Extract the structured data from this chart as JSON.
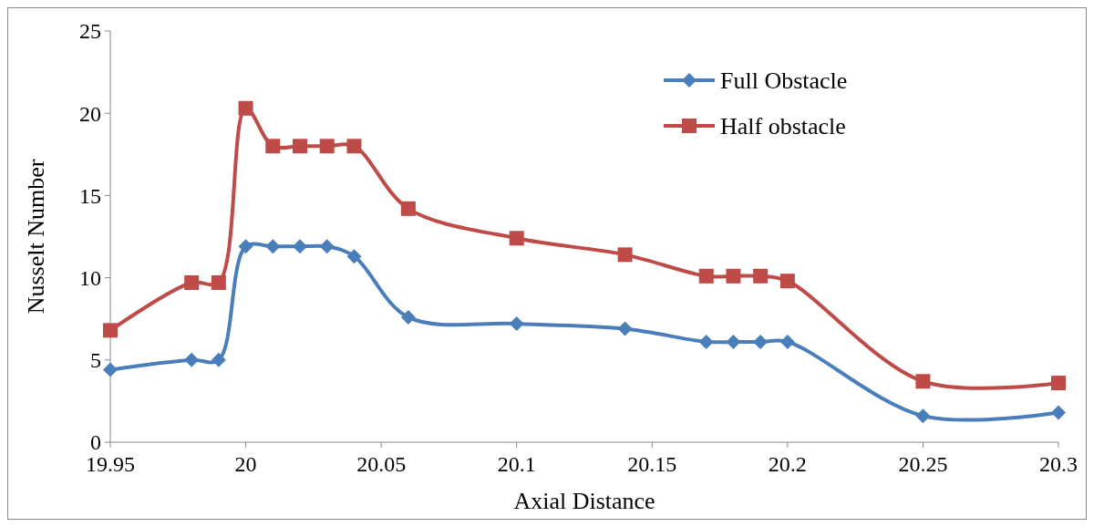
{
  "chart_data": {
    "type": "line",
    "xlabel": "Axial Distance",
    "ylabel": "Nusselt Number",
    "xlim": [
      19.95,
      20.3
    ],
    "ylim": [
      0,
      25
    ],
    "xticks": [
      19.95,
      20,
      20.05,
      20.1,
      20.15,
      20.2,
      20.25,
      20.3
    ],
    "yticks": [
      0,
      5,
      10,
      15,
      20,
      25
    ],
    "grid": false,
    "legend": "top right",
    "line_style": "solid",
    "x": [
      19.95,
      19.98,
      19.99,
      20.0,
      20.01,
      20.02,
      20.03,
      20.04,
      20.06,
      20.1,
      20.14,
      20.17,
      20.18,
      20.19,
      20.2,
      20.25,
      20.3
    ],
    "series": [
      {
        "name": "Full Obstacle",
        "color": "#4a7ebb",
        "marker": "diamond",
        "values": [
          4.4,
          5.0,
          5.0,
          11.9,
          11.9,
          11.9,
          11.9,
          11.3,
          7.6,
          7.2,
          6.9,
          6.1,
          6.1,
          6.1,
          6.1,
          1.6,
          1.8
        ]
      },
      {
        "name": "Half obstacle",
        "color": "#be4b48",
        "marker": "square",
        "values": [
          6.8,
          9.7,
          9.7,
          20.3,
          18.0,
          18.0,
          18.0,
          18.0,
          14.2,
          12.4,
          11.4,
          10.1,
          10.1,
          10.1,
          9.8,
          3.7,
          3.6
        ]
      }
    ]
  }
}
